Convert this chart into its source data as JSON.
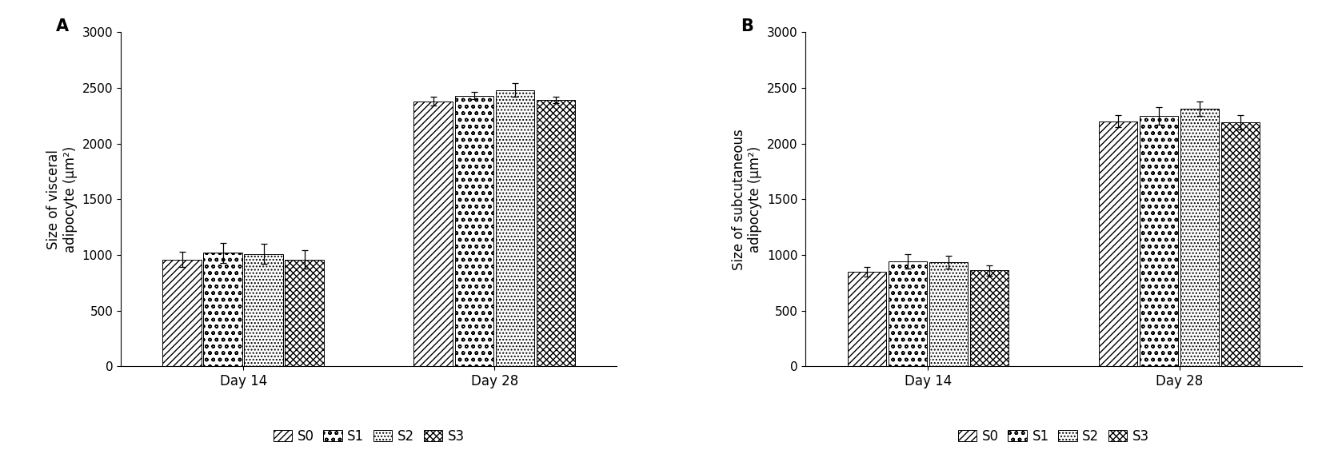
{
  "panel_A": {
    "label": "A",
    "ylabel": "Size of visceral\nadipoocyte (μm²)",
    "ylabel_display": "Size of visceral\nadipoocyte (μm²)",
    "groups": [
      "Day 14",
      "Day 28"
    ],
    "series": [
      "S0",
      "S1",
      "S2",
      "S3"
    ],
    "values": [
      [
        960,
        1020,
        1010,
        960
      ],
      [
        2380,
        2430,
        2480,
        2390
      ]
    ],
    "errors": [
      [
        65,
        90,
        90,
        80
      ],
      [
        40,
        30,
        60,
        30
      ]
    ],
    "ylim": [
      0,
      3000
    ],
    "yticks": [
      0,
      500,
      1000,
      1500,
      2000,
      2500,
      3000
    ]
  },
  "panel_B": {
    "label": "B",
    "ylabel": "Size of subcutaneous\nadipoocyte (μm²)",
    "ylabel_display": "Size of subcutaneous\nadipoocyte (μm²)",
    "groups": [
      "Day 14",
      "Day 28"
    ],
    "series": [
      "S0",
      "S1",
      "S2",
      "S3"
    ],
    "values": [
      [
        850,
        940,
        935,
        860
      ],
      [
        2200,
        2250,
        2310,
        2190
      ]
    ],
    "errors": [
      [
        45,
        65,
        55,
        50
      ],
      [
        55,
        80,
        65,
        65
      ]
    ],
    "ylim": [
      0,
      3000
    ],
    "yticks": [
      0,
      500,
      1000,
      1500,
      2000,
      2500,
      3000
    ]
  },
  "legend_labels": [
    "S0",
    "S1",
    "S2",
    "S3"
  ],
  "bar_width": 0.13,
  "fig_width": 16.78,
  "fig_height": 5.73,
  "background_color": "white",
  "axis_font_size": 12,
  "tick_font_size": 11,
  "legend_font_size": 12,
  "panel_label_font_size": 15
}
